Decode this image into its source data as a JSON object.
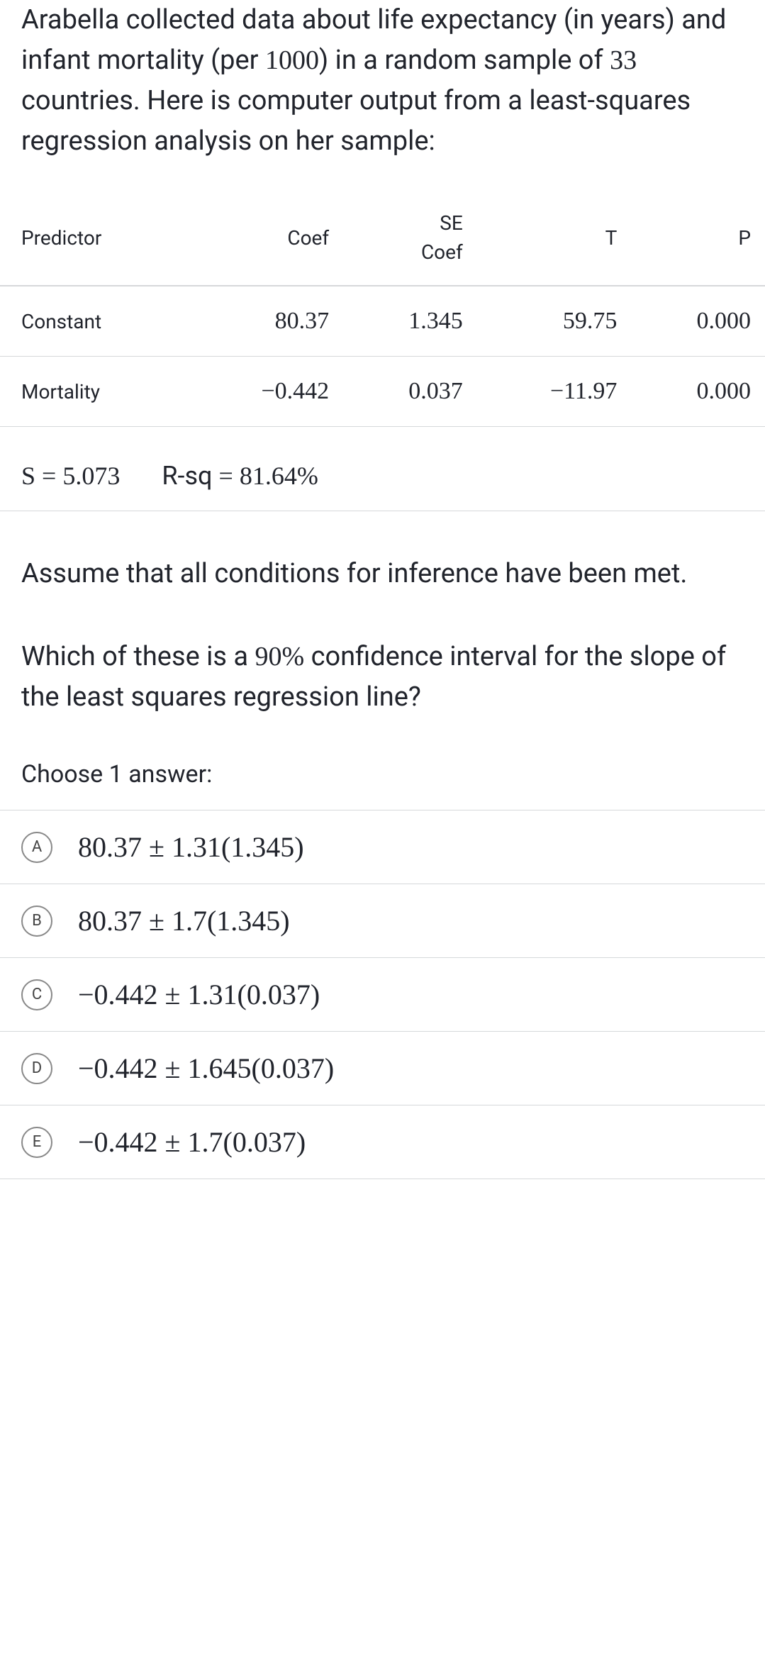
{
  "intro": {
    "part1": "Arabella collected data about life expectancy (in years) and infant mortality (per ",
    "num1": "1000",
    "part2": ") in a random sample of ",
    "num2": "33",
    "part3": " countries. Here is computer output from a least-squares regression analysis on her sample:"
  },
  "table": {
    "headers": {
      "predictor": "Predictor",
      "coef": "Coef",
      "se": "SE",
      "se_sub": "Coef",
      "t": "T",
      "p": "P"
    },
    "rows": [
      {
        "predictor": "Constant",
        "coef": "80.37",
        "se": "1.345",
        "t": "59.75",
        "p": "0.000"
      },
      {
        "predictor": "Mortality",
        "coef": "−0.442",
        "se": "0.037",
        "t": "−11.97",
        "p": "0.000"
      }
    ],
    "stats": {
      "s_label": "S = ",
      "s_value": "5.073",
      "rsq_label": "R-sq",
      "rsq_eq": " = ",
      "rsq_value": "81.64%"
    }
  },
  "assume_text": "Assume that all conditions for inference have been met.",
  "question": {
    "part1": "Which of these is a ",
    "pct": "90%",
    "part2": " confidence interval for the slope of the least squares regression line?"
  },
  "choose_label": "Choose 1 answer:",
  "options": [
    {
      "letter": "A",
      "text": "80.37 ± 1.31(1.345)"
    },
    {
      "letter": "B",
      "text": "80.37 ± 1.7(1.345)"
    },
    {
      "letter": "C",
      "text": "−0.442 ± 1.31(0.037)"
    },
    {
      "letter": "D",
      "text": "−0.442 ± 1.645(0.037)"
    },
    {
      "letter": "E",
      "text": "−0.442 ± 1.7(0.037)"
    }
  ]
}
